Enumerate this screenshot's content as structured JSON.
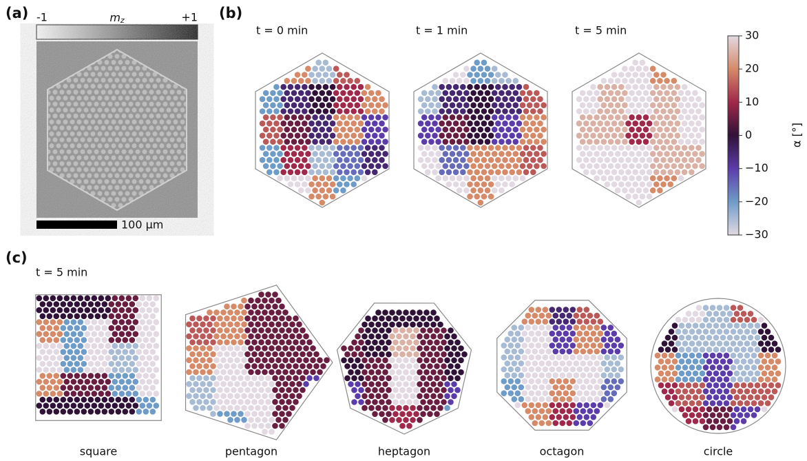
{
  "panel_a": {
    "label": "(a)",
    "symbol": "m",
    "subscript": "z",
    "ticks": [
      {
        "value": -1,
        "label": "-1"
      },
      {
        "value": 1,
        "label": "+1"
      }
    ],
    "scale_bar": "100 μm"
  },
  "panel_b": {
    "label": "(b)",
    "times": [
      "t = 0 min",
      "t = 1 min",
      "t = 5 min"
    ],
    "maps": [
      [
        [
          25,
          20,
          -25,
          15,
          -30
        ],
        [
          -20,
          -5,
          0,
          10,
          20
        ],
        [
          15,
          5,
          -5,
          20,
          -10
        ],
        [
          -20,
          10,
          -25,
          -15,
          -5
        ],
        [
          -30,
          -30,
          20,
          -20,
          -30
        ]
      ],
      [
        [
          -30,
          -30,
          -20,
          -25,
          -30
        ],
        [
          -25,
          -5,
          0,
          -5,
          15
        ],
        [
          -10,
          5,
          0,
          -10,
          20
        ],
        [
          -30,
          -15,
          20,
          20,
          15
        ],
        [
          -30,
          -30,
          20,
          -30,
          -30
        ]
      ],
      [
        [
          -30,
          -30,
          -30,
          20,
          -30
        ],
        [
          -30,
          25,
          -30,
          25,
          -30
        ],
        [
          25,
          25,
          10,
          25,
          -30
        ],
        [
          -30,
          -30,
          -30,
          25,
          25
        ],
        [
          -30,
          -30,
          -30,
          20,
          -30
        ]
      ]
    ]
  },
  "colorbar": {
    "label": "α [°]",
    "lim": [
      -30,
      30
    ],
    "ticks": [
      {
        "value": -30,
        "label": "−30"
      },
      {
        "value": -20,
        "label": "−20"
      },
      {
        "value": -10,
        "label": "−10"
      },
      0,
      10,
      20,
      30
    ]
  },
  "panel_c": {
    "label": "(c)",
    "time": "t = 5 min",
    "shapes": [
      {
        "name": "square",
        "alpha": [
          [
            0,
            0,
            0,
            5,
            -30
          ],
          [
            20,
            -20,
            -30,
            5,
            -30
          ],
          [
            -30,
            -20,
            -30,
            -25,
            -30
          ],
          [
            20,
            5,
            5,
            -20,
            -30
          ],
          [
            0,
            0,
            0,
            0,
            -20
          ]
        ]
      },
      {
        "name": "pentagon",
        "alpha": [
          [
            20,
            20,
            5,
            5,
            5
          ],
          [
            15,
            20,
            5,
            5,
            5
          ],
          [
            20,
            -30,
            5,
            5,
            5
          ],
          [
            -25,
            -30,
            -30,
            5,
            -10
          ],
          [
            -25,
            -20,
            -30,
            5,
            5
          ]
        ]
      },
      {
        "name": "heptagon",
        "alpha": [
          [
            0,
            0,
            0,
            0,
            0
          ],
          [
            5,
            0,
            25,
            5,
            0
          ],
          [
            0,
            5,
            -30,
            5,
            0
          ],
          [
            -10,
            5,
            -30,
            5,
            -10
          ],
          [
            5,
            5,
            10,
            5,
            -20
          ]
        ]
      },
      {
        "name": "octagon",
        "alpha": [
          [
            -10,
            20,
            -5,
            15,
            -30
          ],
          [
            -25,
            -30,
            -10,
            20,
            -10
          ],
          [
            -25,
            -30,
            -30,
            -30,
            -25
          ],
          [
            -20,
            -30,
            20,
            -30,
            -15
          ],
          [
            -30,
            20,
            10,
            -10,
            -30
          ]
        ]
      },
      {
        "name": "circle",
        "alpha": [
          [
            -30,
            -30,
            -25,
            15,
            -30
          ],
          [
            0,
            -25,
            -25,
            -25,
            0
          ],
          [
            20,
            -20,
            -10,
            -25,
            20
          ],
          [
            10,
            15,
            -10,
            15,
            15
          ],
          [
            -30,
            10,
            5,
            -10,
            -30
          ]
        ]
      }
    ]
  }
}
